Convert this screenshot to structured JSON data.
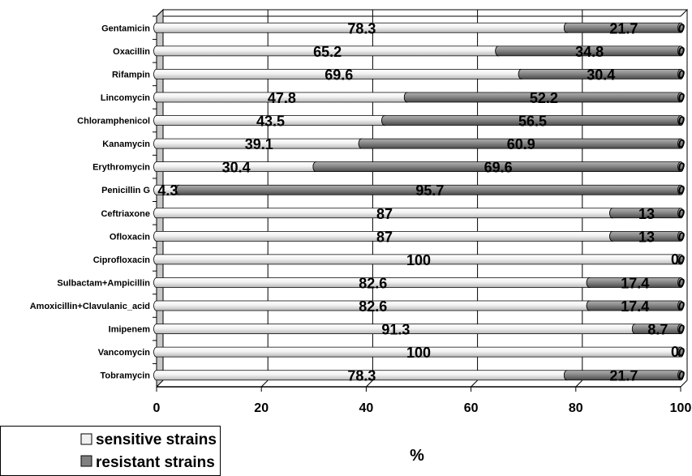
{
  "chart_data": {
    "type": "bar",
    "orientation": "horizontal",
    "stacked": true,
    "stacked_percent": true,
    "categories": [
      "Gentamicin",
      "Oxacillin",
      "Rifampin",
      "Lincomycin",
      "Chloramphenicol",
      "Kanamycin",
      "Erythromycin",
      "Penicillin G",
      "Ceftriaxone",
      "Ofloxacin",
      "Ciprofloxacin",
      "Sulbactam+Ampicillin",
      "Amoxicillin+Clavulanic_acid",
      "Imipenem",
      "Vancomycin",
      "Tobramycin"
    ],
    "series": [
      {
        "name": "sensitive strains",
        "color": "#ececec",
        "values": [
          78.3,
          65.2,
          69.6,
          47.8,
          43.5,
          39.1,
          30.4,
          4.3,
          87,
          87,
          100,
          82.6,
          82.6,
          91.3,
          100,
          78.3
        ],
        "labels": [
          "78.3",
          "65.2",
          "69.6",
          "47.8",
          "43.5",
          "39.1",
          "30.4",
          "4.3",
          "87",
          "87",
          "100",
          "82.6",
          "82.6",
          "91.3",
          "100",
          "78.3"
        ]
      },
      {
        "name": "resistant strains",
        "color": "#808080",
        "values": [
          21.7,
          34.8,
          30.4,
          52.2,
          56.5,
          60.9,
          69.6,
          95.7,
          13,
          13,
          0,
          17.4,
          17.4,
          8.7,
          0,
          21.7
        ],
        "labels": [
          "21.7",
          "34.8",
          "30.4",
          "52.2",
          "56.5",
          "60.9",
          "69.6",
          "95.7",
          "13",
          "13",
          "0",
          "17.4",
          "17.4",
          "8.7",
          "0",
          "21.7"
        ]
      }
    ],
    "third_segment_label": "0",
    "x_ticks": [
      "0",
      "20",
      "40",
      "60",
      "80",
      "100"
    ],
    "xlim": [
      0,
      100
    ],
    "xlabel": "%",
    "ylabel": "",
    "title": "",
    "grid": "vertical",
    "legend_position": "bottom-left"
  }
}
